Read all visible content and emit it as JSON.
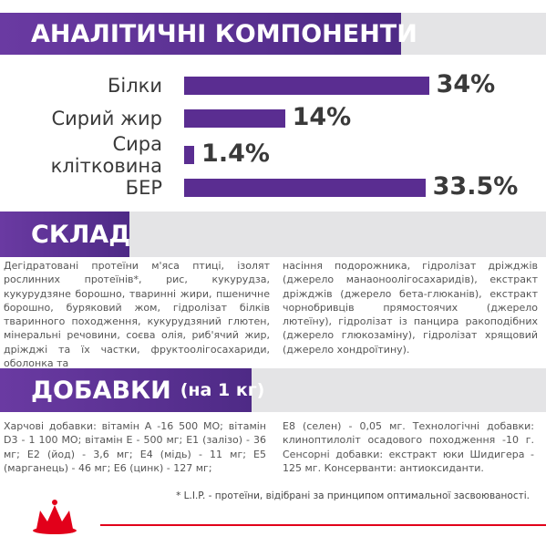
{
  "chart_data": {
    "type": "bar",
    "title": "АНАЛІТИЧНІ КОМПОНЕНТИ",
    "categories": [
      "Білки",
      "Сирий жир",
      "Сира клітковина",
      "БЕР"
    ],
    "values": [
      34,
      14,
      1.4,
      33.5
    ],
    "value_labels": [
      "34%",
      "14%",
      "1.4%",
      "33.5%"
    ],
    "color": "#5a2d91"
  },
  "composition": {
    "title": "СКЛАД",
    "columns": [
      "Дегідратовані протеїни м'яса птиці, ізолят рослинних протеїнів*, рис, кукурудза, кукурудзяне борошно, тваринні жири, пшеничне борошно, буряковий жом, гідролізат білків тваринного походження, кукурудзяний глютен, мінеральні речовини, соєва олія, риб'ячий жир, дріжджі та їх частки, фруктоолігосахариди, оболонка та",
      "насіння подорожника, гідролізат дріжджів (джерело манаоноолігосахаридів), екстракт дріжджів (джерело бета-глюканів), екстракт чорнобривців прямостоячих (джерело лютеїну), гідролізат із панцира ракоподібних (джерело глюкозаміну), гідролізат хрящовий (джерело хондроїтину)."
    ]
  },
  "additives": {
    "title": "ДОБАВКИ",
    "subtitle": "(на 1 кг)",
    "columns": [
      "Харчові добавки: вітамін А -16 500 МО; вітамін D3 - 1 100 МО; вітамін Е - 500 мг; Е1 (залізо) - 36 мг; Е2 (йод) - 3,6 мг; Е4 (мідь) - 11 мг; Е5 (марганець) - 46 мг; Е6 (цинк) - 127 мг;",
      "Е8 (селен) - 0,05 мг. Технологічні добавки: клиноптилоліт осадового походження -10 г. Сенсорні добавки: екстракт юки Шидигера - 125 мг. Консерванти: антиоксиданти."
    ]
  },
  "footnote": "* L.I.P. - протеїни, відібрані за принципом оптимальної засвоюваності."
}
